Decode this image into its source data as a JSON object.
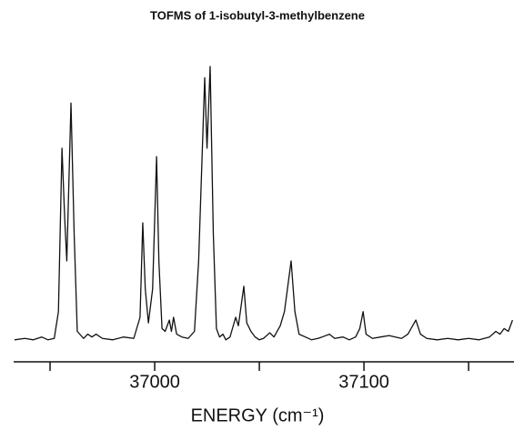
{
  "chart_data": {
    "type": "line",
    "title": "TOFMS of 1-isobutyl-3-methylbenzene",
    "x_label": "ENERGY (cm⁻¹)",
    "xlim": [
      36932.6,
      37171.7
    ],
    "xticks": [
      37000,
      37100
    ],
    "xminor_ticks": [
      36950,
      37050,
      37150
    ],
    "ylim": [
      0,
      100
    ],
    "series": [
      {
        "color": "#111111",
        "x": [
          36933,
          36938,
          36942,
          36946,
          36949,
          36952,
          36954,
          36955.7,
          36957,
          36958,
          36960,
          36961.5,
          36963,
          36966,
          36968,
          36970,
          36972,
          36975,
          36980,
          36985,
          36990,
          36993,
          36994.3,
          36995.5,
          36997,
          36999,
          37000.9,
          37002,
          37003.5,
          37005,
          37007,
          37008,
          37009,
          37010.5,
          37013,
          37016,
          37019,
          37021,
          37023.9,
          37025,
          37026.5,
          37028,
          37029.5,
          37031,
          37032.6,
          37034,
          37036,
          37038.7,
          37040,
          37042.6,
          37044,
          37046,
          37048,
          37050,
          37052,
          37055,
          37057,
          37060,
          37062,
          37065.2,
          37067,
          37069,
          37072,
          37075,
          37078,
          37080,
          37083.5,
          37086,
          37090,
          37093,
          37096,
          37098,
          37099.6,
          37101,
          37104,
          37108,
          37112,
          37115,
          37118,
          37121,
          37124.8,
          37127,
          37130,
          37135,
          37140,
          37145,
          37150,
          37155,
          37160,
          37163,
          37165,
          37167,
          37169,
          37171
        ],
        "values": [
          2,
          2.5,
          2,
          3,
          2,
          2.5,
          12,
          70,
          45,
          30,
          86,
          40,
          5,
          2.5,
          4,
          3,
          4,
          2.5,
          2,
          3,
          2.5,
          10,
          43.5,
          20,
          8,
          20,
          67,
          30,
          6,
          5,
          9,
          5,
          10,
          4,
          3,
          2.5,
          5,
          30,
          95,
          70,
          99,
          40,
          6,
          3,
          4,
          2,
          3,
          10,
          7,
          21,
          8,
          5,
          3,
          2,
          2.5,
          4.5,
          3,
          7,
          12,
          30,
          12,
          4,
          3,
          2,
          2.5,
          3,
          4,
          2.5,
          3,
          2,
          3,
          6,
          12,
          4,
          2.5,
          3,
          3.5,
          3,
          2.5,
          4,
          9,
          4,
          2.5,
          2,
          2.5,
          2,
          2.5,
          2,
          3,
          5,
          4,
          6,
          5,
          9
        ]
      }
    ]
  }
}
